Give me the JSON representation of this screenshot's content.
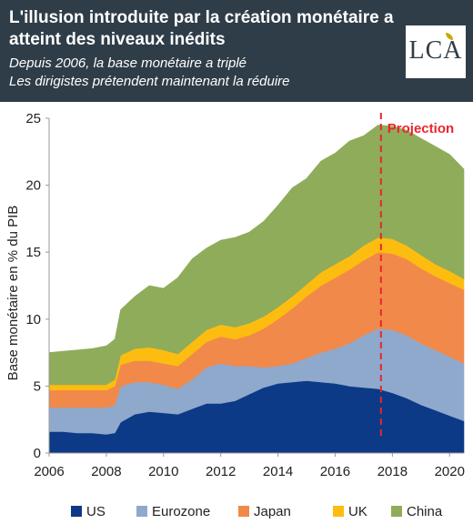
{
  "header": {
    "title": "L'illusion introduite par la création monétaire a atteint des niveaux inédits",
    "subtitle_1": "Depuis 2006, la base monétaire a triplé",
    "subtitle_2": "Les dirigistes prétendent maintenant la réduire",
    "logo": "LCA"
  },
  "chart_data": {
    "type": "area",
    "stacked": true,
    "title": "",
    "xlabel": "",
    "ylabel": "Base monétaire en % du PIB",
    "xlim": [
      2006,
      2020.5
    ],
    "ylim": [
      0,
      25
    ],
    "x_ticks": [
      "2006",
      "2008",
      "2010",
      "2012",
      "2014",
      "2016",
      "2018",
      "2020"
    ],
    "y_ticks": [
      "0",
      "5",
      "10",
      "15",
      "20",
      "25"
    ],
    "annotation": {
      "text": "Projection",
      "x": 2017.6,
      "color": "#e8262d"
    },
    "x": [
      2006,
      2006.5,
      2007,
      2007.5,
      2008,
      2008.3,
      2008.5,
      2009,
      2009.5,
      2010,
      2010.5,
      2011,
      2011.5,
      2012,
      2012.5,
      2013,
      2013.5,
      2014,
      2014.5,
      2015,
      2015.5,
      2016,
      2016.5,
      2017,
      2017.5,
      2018,
      2018.5,
      2019,
      2019.5,
      2020,
      2020.5
    ],
    "series": [
      {
        "name": "US",
        "color": "#0d3a86",
        "values": [
          1.6,
          1.6,
          1.5,
          1.5,
          1.4,
          1.5,
          2.3,
          2.9,
          3.1,
          3.0,
          2.9,
          3.3,
          3.7,
          3.7,
          3.9,
          4.4,
          4.9,
          5.2,
          5.3,
          5.4,
          5.3,
          5.2,
          5.0,
          4.9,
          4.8,
          4.5,
          4.1,
          3.6,
          3.2,
          2.8,
          2.4
        ]
      },
      {
        "name": "Eurozone",
        "color": "#8fa9cc",
        "values": [
          1.8,
          1.8,
          1.9,
          1.9,
          2.0,
          2.1,
          2.7,
          2.4,
          2.2,
          2.1,
          1.9,
          2.2,
          2.7,
          3.0,
          2.6,
          2.1,
          1.5,
          1.3,
          1.4,
          1.7,
          2.2,
          2.6,
          3.2,
          3.9,
          4.5,
          4.7,
          4.7,
          4.6,
          4.5,
          4.4,
          4.3
        ]
      },
      {
        "name": "Japan",
        "color": "#f1894a",
        "values": [
          1.3,
          1.3,
          1.3,
          1.3,
          1.3,
          1.4,
          1.6,
          1.6,
          1.6,
          1.6,
          1.7,
          1.9,
          1.9,
          2.0,
          2.0,
          2.3,
          2.9,
          3.5,
          4.1,
          4.6,
          5.0,
          5.3,
          5.5,
          5.6,
          5.7,
          5.7,
          5.7,
          5.6,
          5.5,
          5.5,
          5.5
        ]
      },
      {
        "name": "UK",
        "color": "#fdbd10",
        "values": [
          0.4,
          0.4,
          0.4,
          0.4,
          0.4,
          0.5,
          0.7,
          0.9,
          1.0,
          1.0,
          0.9,
          0.9,
          0.9,
          0.9,
          0.9,
          0.9,
          0.9,
          0.9,
          0.9,
          0.9,
          1.0,
          1.0,
          1.0,
          1.1,
          1.1,
          1.1,
          1.0,
          1.0,
          0.9,
          0.9,
          0.8
        ]
      },
      {
        "name": "China",
        "color": "#8fac5a",
        "values": [
          2.4,
          2.5,
          2.6,
          2.7,
          2.9,
          3.0,
          3.4,
          3.9,
          4.6,
          4.6,
          5.7,
          6.2,
          6.1,
          6.3,
          6.7,
          6.8,
          7.1,
          7.6,
          8.1,
          7.9,
          8.3,
          8.3,
          8.6,
          8.2,
          8.4,
          8.4,
          8.6,
          8.7,
          8.8,
          8.7,
          8.2
        ]
      }
    ]
  }
}
